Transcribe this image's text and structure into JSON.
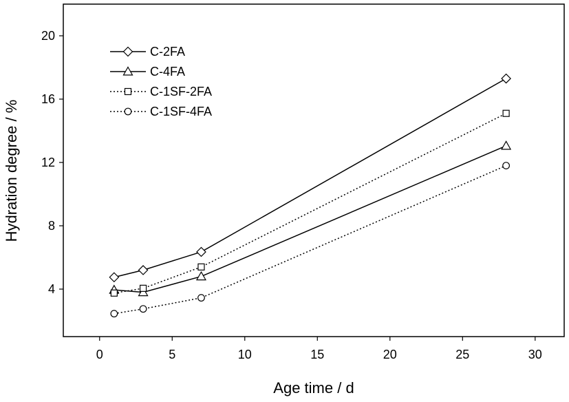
{
  "chart_data": {
    "type": "line",
    "xlabel": "Age time / d",
    "ylabel": "Hydration degree / %",
    "xlim": [
      -2.5,
      32
    ],
    "ylim": [
      1.0,
      22.0
    ],
    "xticks": [
      0,
      5,
      10,
      15,
      20,
      25,
      30
    ],
    "yticks": [
      4,
      8,
      12,
      16,
      20
    ],
    "grid": false,
    "legend_position": "top-left",
    "series": [
      {
        "name": "C-2FA",
        "marker": "diamond",
        "line_style": "solid",
        "x": [
          1,
          3,
          7,
          28
        ],
        "y": [
          4.75,
          5.2,
          6.35,
          17.3
        ]
      },
      {
        "name": "C-4FA",
        "marker": "triangle",
        "line_style": "solid",
        "x": [
          1,
          3,
          7,
          28
        ],
        "y": [
          3.95,
          3.8,
          4.8,
          13.05
        ]
      },
      {
        "name": "C-1SF-2FA",
        "marker": "square",
        "line_style": "dotted",
        "x": [
          1,
          3,
          7,
          28
        ],
        "y": [
          3.75,
          4.05,
          5.4,
          15.1
        ]
      },
      {
        "name": "C-1SF-4FA",
        "marker": "circle",
        "line_style": "dotted",
        "x": [
          1,
          3,
          7,
          28
        ],
        "y": [
          2.45,
          2.75,
          3.45,
          11.8
        ]
      }
    ]
  }
}
